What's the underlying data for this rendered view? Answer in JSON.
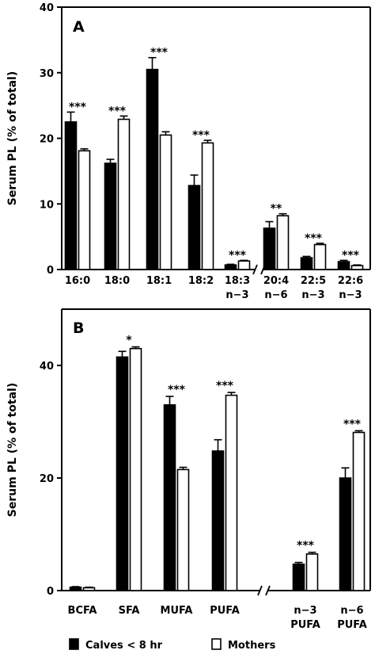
{
  "chart_data": [
    {
      "type": "bar",
      "panel_label": "A",
      "ylabel": "Serum PL (% of total)",
      "ylim": [
        0,
        40
      ],
      "yticks": [
        0,
        10,
        20,
        30,
        40
      ],
      "axis_break_after_index": 4,
      "categories": [
        {
          "line1": "16:0",
          "line2": ""
        },
        {
          "line1": "18:0",
          "line2": ""
        },
        {
          "line1": "18:1",
          "line2": ""
        },
        {
          "line1": "18:2",
          "line2": ""
        },
        {
          "line1": "18:3",
          "line2": "n−3"
        },
        {
          "line1": "20:4",
          "line2": "n−6"
        },
        {
          "line1": "22:5",
          "line2": "n−3"
        },
        {
          "line1": "22:6",
          "line2": "n−3"
        }
      ],
      "series": [
        {
          "name": "Calves < 8 hr",
          "fill": "#000000",
          "values": [
            22.5,
            16.2,
            30.5,
            12.8,
            0.7,
            6.3,
            1.8,
            1.2
          ],
          "errors": [
            1.5,
            0.6,
            1.8,
            1.6,
            0.1,
            1.0,
            0.2,
            0.2
          ]
        },
        {
          "name": "Mothers",
          "fill": "#ffffff",
          "values": [
            18.1,
            22.9,
            20.5,
            19.3,
            1.3,
            8.2,
            3.8,
            0.6
          ],
          "errors": [
            0.3,
            0.5,
            0.5,
            0.4,
            0.1,
            0.3,
            0.2,
            0.1
          ]
        }
      ],
      "significance": [
        "***",
        "***",
        "***",
        "***",
        "***",
        "**",
        "***",
        "***"
      ]
    },
    {
      "type": "bar",
      "panel_label": "B",
      "ylabel": "Serum PL (% of total)",
      "ylim": [
        0,
        50
      ],
      "yticks": [
        0,
        20,
        40
      ],
      "axis_break_after_index": 4,
      "categories": [
        {
          "line1": "BCFA",
          "line2": ""
        },
        {
          "line1": "SFA",
          "line2": ""
        },
        {
          "line1": "MUFA",
          "line2": ""
        },
        {
          "line1": "PUFA",
          "line2": ""
        },
        {
          "line1": "n−3",
          "line2": "PUFA"
        },
        {
          "line1": "n−6",
          "line2": "PUFA"
        }
      ],
      "series": [
        {
          "name": "Calves < 8 hr",
          "fill": "#000000",
          "values": [
            0.6,
            41.5,
            33.0,
            24.8,
            4.7,
            20.0
          ],
          "errors": [
            0.1,
            1.0,
            1.5,
            2.0,
            0.3,
            1.8
          ]
        },
        {
          "name": "Mothers",
          "fill": "#ffffff",
          "values": [
            0.5,
            43.0,
            21.5,
            34.7,
            6.5,
            28.1
          ],
          "errors": [
            0.1,
            0.3,
            0.4,
            0.5,
            0.3,
            0.3
          ]
        }
      ],
      "significance": [
        "",
        "*",
        "***",
        "***",
        "***",
        "***"
      ]
    }
  ],
  "legend": [
    {
      "label": "Calves < 8 hr",
      "fill": "#000000"
    },
    {
      "label": "Mothers",
      "fill": "#ffffff"
    }
  ]
}
